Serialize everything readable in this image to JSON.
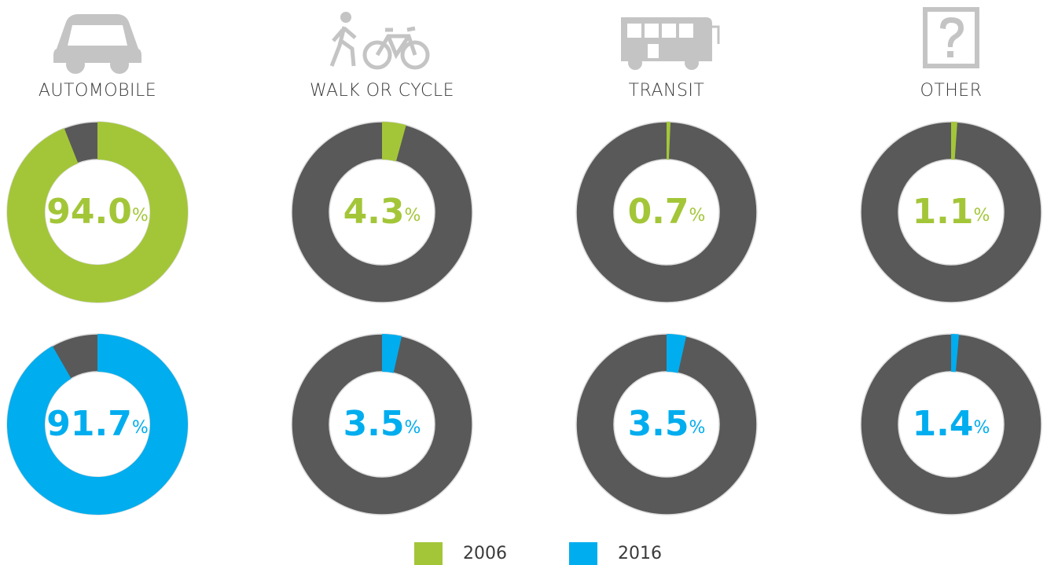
{
  "chart_data": {
    "type": "donut",
    "categories": [
      "AUTOMOBILE",
      "WALK OR CYCLE",
      "TRANSIT",
      "OTHER"
    ],
    "series": [
      {
        "name": "2006",
        "color": "#a3c639",
        "values": [
          94.0,
          4.3,
          0.7,
          1.1
        ],
        "value_labels": [
          "94.0%",
          "4.3%",
          "0.7%",
          "1.1%"
        ]
      },
      {
        "name": "2016",
        "color": "#00adee",
        "values": [
          91.7,
          3.5,
          3.5,
          1.4
        ],
        "value_labels": [
          "91.7%",
          "3.5%",
          "3.5%",
          "1.4%"
        ]
      }
    ]
  }
}
